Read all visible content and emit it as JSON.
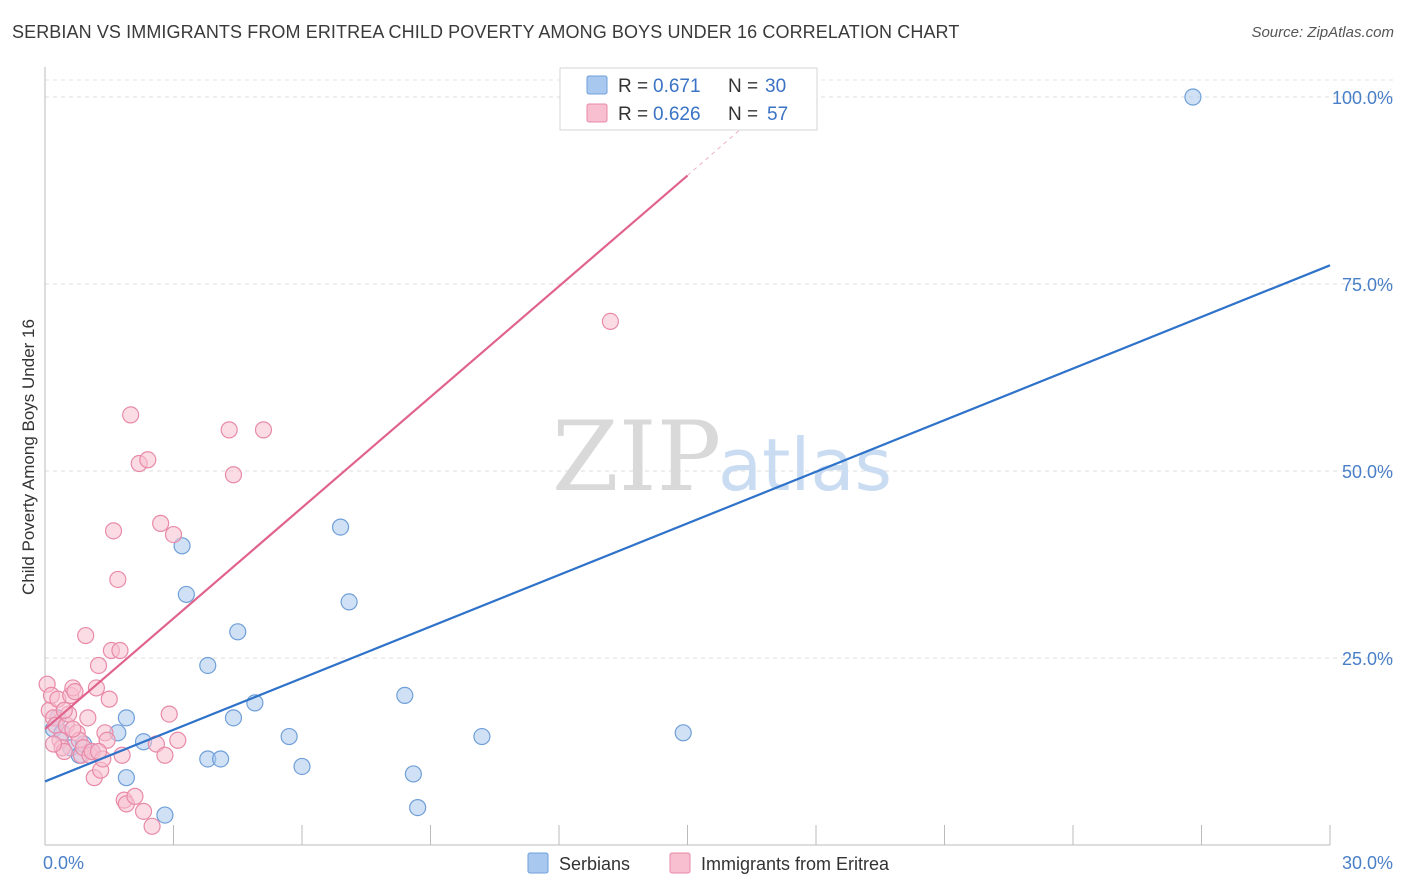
{
  "header": {
    "title": "SERBIAN VS IMMIGRANTS FROM ERITREA CHILD POVERTY AMONG BOYS UNDER 16 CORRELATION CHART",
    "source": "Source: ZipAtlas.com"
  },
  "watermark": {
    "zip": "ZIP",
    "atlas": "atlas"
  },
  "legend": {
    "rows": [
      {
        "r_label": "R =",
        "r_value": "0.671",
        "n_label": "N =",
        "n_value": "30",
        "color": "#a9c8ef",
        "stroke": "#6f9fd8"
      },
      {
        "r_label": "R =",
        "r_value": "0.626",
        "n_label": "N =",
        "n_value": "57",
        "color": "#f7bfd0",
        "stroke": "#e88aa8"
      }
    ]
  },
  "bottom_legend": [
    {
      "label": "Serbians",
      "color": "#a9c8ef",
      "stroke": "#6f9fd8"
    },
    {
      "label": "Immigrants from Eritrea",
      "color": "#f7bfd0",
      "stroke": "#e88aa8"
    }
  ],
  "chart_data": {
    "type": "scatter",
    "title": "SERBIAN VS IMMIGRANTS FROM ERITREA CHILD POVERTY AMONG BOYS UNDER 16 CORRELATION CHART",
    "xlabel": "",
    "ylabel": "Child Poverty Among Boys Under 16",
    "xlim": [
      0,
      30
    ],
    "ylim": [
      0,
      100
    ],
    "x_tick_labels": [
      "0.0%",
      "30.0%"
    ],
    "y_ticks": [
      25,
      50,
      75,
      100
    ],
    "y_tick_labels": [
      "25.0%",
      "50.0%",
      "75.0%",
      "100.0%"
    ],
    "series": [
      {
        "name": "Serbians",
        "color": "#6f9fd8",
        "fill": "#a9c8ef",
        "line_color": "#2e72c9",
        "trend": {
          "x0": 0,
          "y0": 8.5,
          "x1": 30,
          "y1": 77.5
        },
        "points": [
          [
            0.2,
            15.5
          ],
          [
            0.4,
            15
          ],
          [
            0.6,
            13
          ],
          [
            0.8,
            12
          ],
          [
            1.1,
            12.5
          ],
          [
            1.7,
            15
          ],
          [
            2.3,
            13.8
          ],
          [
            1.9,
            17
          ],
          [
            1.9,
            9
          ],
          [
            2.8,
            4
          ],
          [
            3.2,
            40
          ],
          [
            3.3,
            33.5
          ],
          [
            3.8,
            11.5
          ],
          [
            3.8,
            24
          ],
          [
            4.1,
            11.5
          ],
          [
            4.4,
            17
          ],
          [
            4.5,
            28.5
          ],
          [
            4.9,
            19
          ],
          [
            5.7,
            14.5
          ],
          [
            6.0,
            10.5
          ],
          [
            6.9,
            42.5
          ],
          [
            7.1,
            32.5
          ],
          [
            8.4,
            20
          ],
          [
            8.6,
            9.5
          ],
          [
            8.7,
            5
          ],
          [
            10.2,
            14.5
          ],
          [
            14.9,
            15
          ],
          [
            26.8,
            100
          ],
          [
            0.3,
            17
          ],
          [
            0.9,
            13.5
          ]
        ]
      },
      {
        "name": "Immigrants from Eritrea",
        "color": "#e88aa8",
        "fill": "#f7bfd0",
        "line_color": "#e0638e",
        "trend": {
          "x0": 0,
          "y0": 15.5,
          "x1": 15.0,
          "y1": 89.5
        },
        "trend_ext": {
          "x0": 15.0,
          "y0": 89.5,
          "x1": 16.2,
          "y1": 95.5
        },
        "points": [
          [
            0.05,
            21.5
          ],
          [
            0.1,
            18
          ],
          [
            0.15,
            20
          ],
          [
            0.2,
            17
          ],
          [
            0.25,
            16
          ],
          [
            0.3,
            19.5
          ],
          [
            0.35,
            14
          ],
          [
            0.4,
            13
          ],
          [
            0.45,
            12.5
          ],
          [
            0.5,
            16
          ],
          [
            0.55,
            17.5
          ],
          [
            0.6,
            20
          ],
          [
            0.65,
            21
          ],
          [
            0.7,
            20.5
          ],
          [
            0.75,
            15
          ],
          [
            0.8,
            14
          ],
          [
            0.85,
            12
          ],
          [
            0.9,
            13
          ],
          [
            0.95,
            28
          ],
          [
            1.0,
            17
          ],
          [
            1.05,
            12
          ],
          [
            1.1,
            12.5
          ],
          [
            1.15,
            9
          ],
          [
            1.2,
            21
          ],
          [
            1.25,
            24
          ],
          [
            1.3,
            10
          ],
          [
            1.35,
            11.5
          ],
          [
            1.4,
            15
          ],
          [
            1.45,
            14
          ],
          [
            1.5,
            19.5
          ],
          [
            1.55,
            26
          ],
          [
            1.6,
            42
          ],
          [
            1.7,
            35.5
          ],
          [
            1.75,
            26
          ],
          [
            1.8,
            12
          ],
          [
            1.85,
            6
          ],
          [
            1.9,
            5.5
          ],
          [
            2.0,
            57.5
          ],
          [
            2.1,
            6.5
          ],
          [
            2.2,
            51
          ],
          [
            2.3,
            4.5
          ],
          [
            2.4,
            51.5
          ],
          [
            2.5,
            2.5
          ],
          [
            2.6,
            13.5
          ],
          [
            2.7,
            43
          ],
          [
            2.8,
            12
          ],
          [
            2.9,
            17.5
          ],
          [
            3.0,
            41.5
          ],
          [
            3.1,
            14
          ],
          [
            4.3,
            55.5
          ],
          [
            4.4,
            49.5
          ],
          [
            5.1,
            55.5
          ],
          [
            13.2,
            70
          ],
          [
            0.45,
            18
          ],
          [
            0.2,
            13.5
          ],
          [
            0.65,
            15.5
          ],
          [
            1.25,
            12.5
          ]
        ]
      }
    ]
  }
}
